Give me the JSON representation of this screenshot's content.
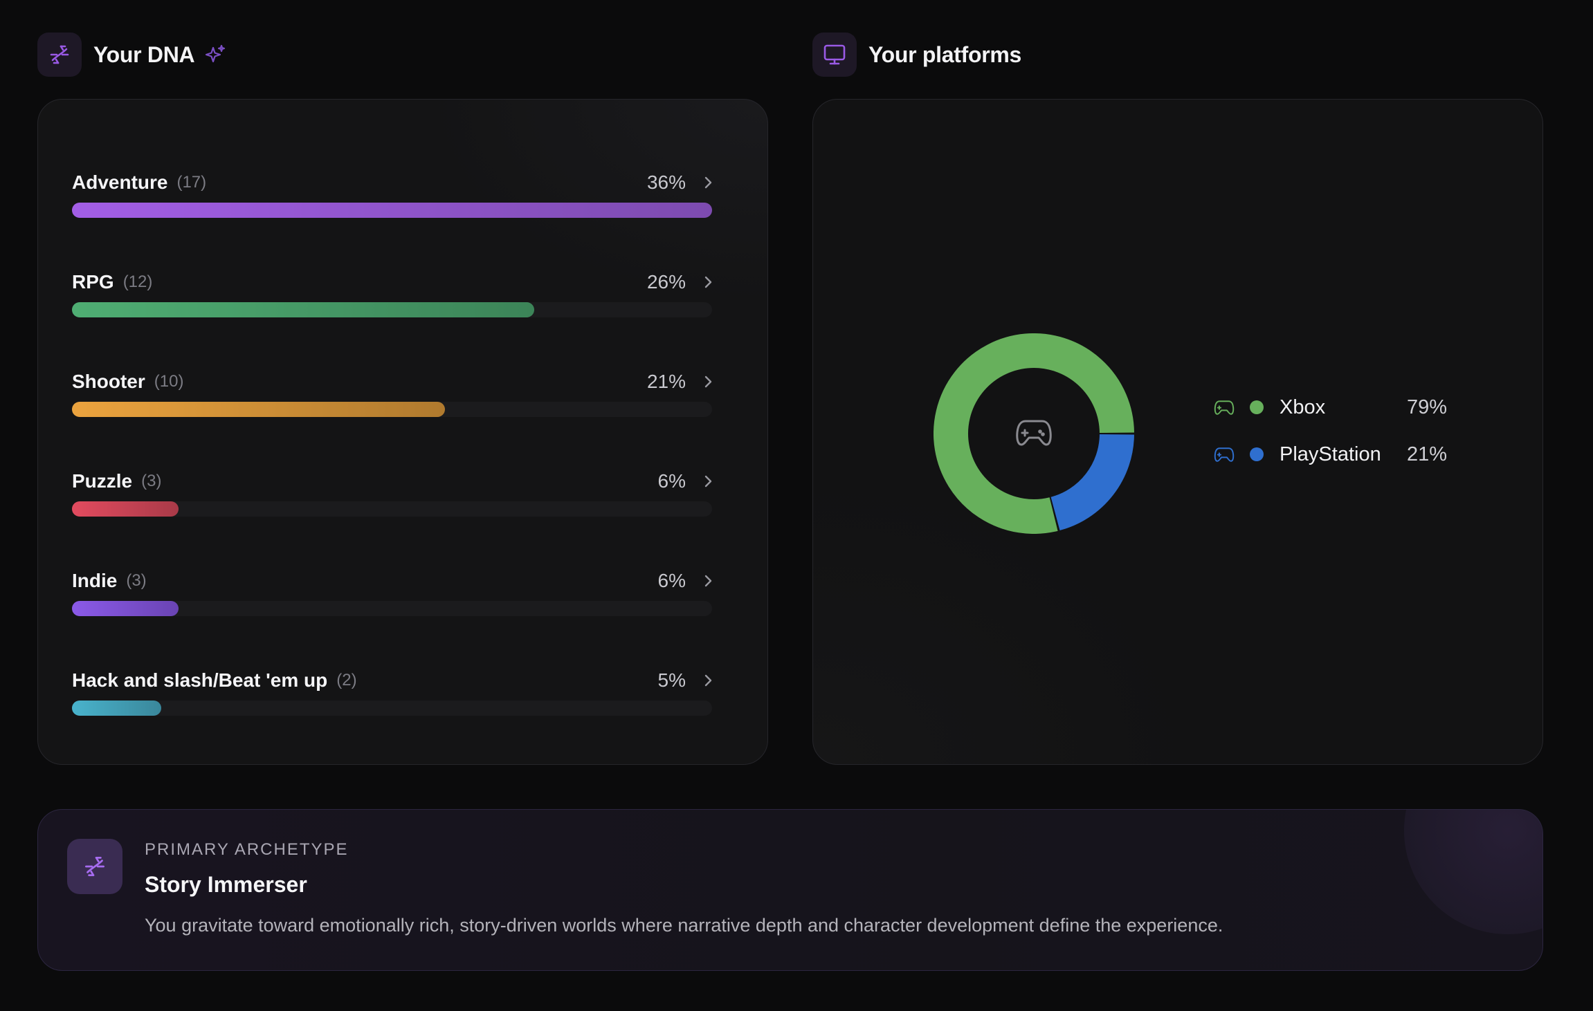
{
  "dna_section": {
    "title": "Your DNA",
    "icon": "dna-icon",
    "genres": [
      {
        "name": "Adventure",
        "count": "(17)",
        "percent": "36%",
        "fill_fraction": 1.0,
        "color_start": "#a35ee6",
        "color_end": "#7d4bb0"
      },
      {
        "name": "RPG",
        "count": "(12)",
        "percent": "26%",
        "fill_fraction": 0.722,
        "color_start": "#4fae73",
        "color_end": "#3c8458"
      },
      {
        "name": "Shooter",
        "count": "(10)",
        "percent": "21%",
        "fill_fraction": 0.583,
        "color_start": "#eba33e",
        "color_end": "#b07a2e"
      },
      {
        "name": "Puzzle",
        "count": "(3)",
        "percent": "6%",
        "fill_fraction": 0.167,
        "color_start": "#e24b5f",
        "color_end": "#a93a48"
      },
      {
        "name": "Indie",
        "count": "(3)",
        "percent": "6%",
        "fill_fraction": 0.167,
        "color_start": "#8b5ae8",
        "color_end": "#6a44b3"
      },
      {
        "name": "Hack and slash/Beat 'em up",
        "count": "(2)",
        "percent": "5%",
        "fill_fraction": 0.139,
        "color_start": "#49b3cc",
        "color_end": "#3a879b"
      }
    ]
  },
  "platforms_section": {
    "title": "Your platforms",
    "icon": "monitor-icon",
    "center_icon": "gamepad-icon",
    "platforms": [
      {
        "name": "Xbox",
        "percent": "79%",
        "value": 79,
        "color": "#67b05c"
      },
      {
        "name": "PlayStation",
        "percent": "21%",
        "value": 21,
        "color": "#2f6fcf"
      }
    ]
  },
  "archetype": {
    "label": "PRIMARY ARCHETYPE",
    "title": "Story Immerser",
    "description": "You gravitate toward emotionally rich, story-driven worlds where narrative depth and character development define the experience."
  },
  "colors": {
    "accent": "#9a5ae6",
    "background": "#0b0b0c"
  }
}
